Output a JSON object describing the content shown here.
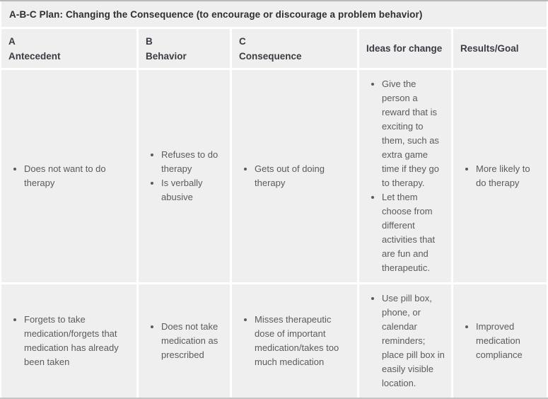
{
  "title": "A-B-C Plan: Changing the Consequence (to encourage or discourage a problem behavior)",
  "columns": {
    "antecedent": {
      "letter": "A",
      "label": "Antecedent"
    },
    "behavior": {
      "letter": "B",
      "label": "Behavior"
    },
    "consequence": {
      "letter": "C",
      "label": "Consequence"
    },
    "ideas": {
      "label": "Ideas for change"
    },
    "results": {
      "label": "Results/Goal"
    }
  },
  "rows": [
    {
      "antecedent": [
        "Does not want to do therapy"
      ],
      "behavior": [
        "Refuses to do therapy",
        "Is verbally abusive"
      ],
      "consequence": [
        "Gets out of doing therapy"
      ],
      "ideas": [
        "Give the person a reward that is exciting to them, such as extra game time if they go to therapy.",
        "Let them choose from different activities that are fun and therapeutic."
      ],
      "results": [
        "More likely to do therapy"
      ]
    },
    {
      "antecedent": [
        "Forgets to take medication/forgets that medication has already been taken"
      ],
      "behavior": [
        "Does not take medication as prescribed"
      ],
      "consequence": [
        "Misses therapeutic dose of important medication/takes too much medication"
      ],
      "ideas": [
        "Use pill box, phone, or calendar reminders; place pill box in easily visible location."
      ],
      "results": [
        "Improved medication compliance"
      ]
    }
  ],
  "colors": {
    "cell_background": "#efefef",
    "gap": "#ffffff",
    "top_border": "#b9b9b9",
    "bottom_border": "#c4c4c4",
    "title_text": "#2f2f2f",
    "header_text": "#3b3b44",
    "body_text": "#5a5b5e"
  }
}
